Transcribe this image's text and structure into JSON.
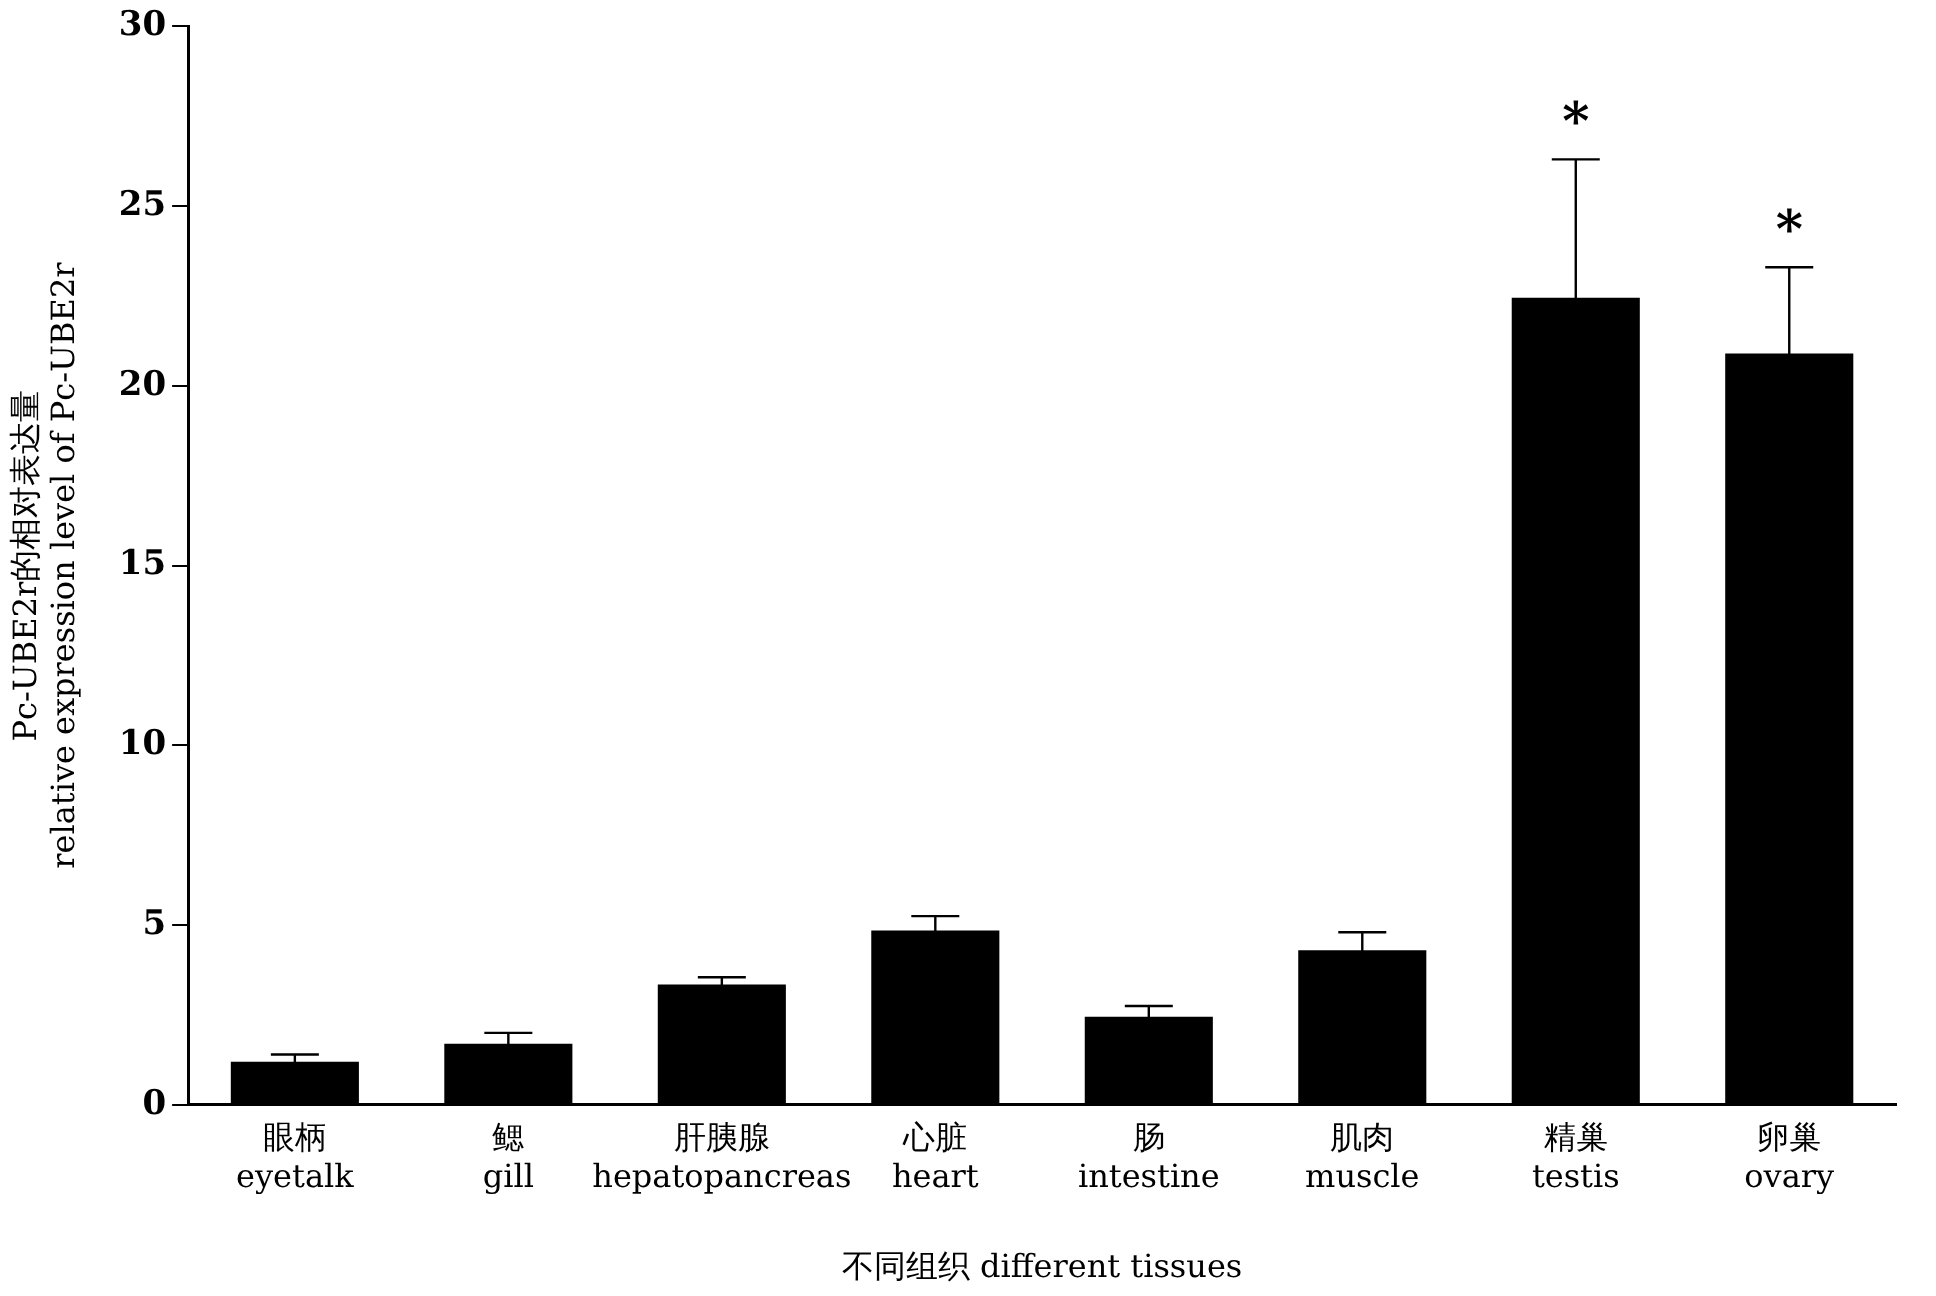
{
  "chart_data": {
    "type": "bar",
    "xlabel": "不同组织 different tissues",
    "ylabel": "Pc-UBE2r的相对表达量\nrelative expression level of Pc-UBE2r",
    "categories": [
      "眼柄\neyetalk",
      "鳃\ngill",
      "肝胰腺\nhepatopancreas",
      "心脏\nheart",
      "肠\nintestine",
      "肌肉\nmuscle",
      "精巢\ntestis",
      "卵巢\novary"
    ],
    "values": [
      1.2,
      1.7,
      3.35,
      4.85,
      2.45,
      4.3,
      22.45,
      20.9
    ],
    "errors": [
      0.2,
      0.3,
      0.2,
      0.4,
      0.3,
      0.5,
      3.85,
      2.4
    ],
    "color": "#000000",
    "ylim": [
      0,
      30
    ],
    "yticks": [
      0,
      5,
      10,
      15,
      20,
      25,
      30
    ],
    "grid": false,
    "legend": false,
    "annotations": [
      {
        "text": "*",
        "x": "精巢\ntestis",
        "y": 26.3
      },
      {
        "text": "*",
        "x": "卵巢\novary",
        "y": 23.3
      }
    ]
  }
}
